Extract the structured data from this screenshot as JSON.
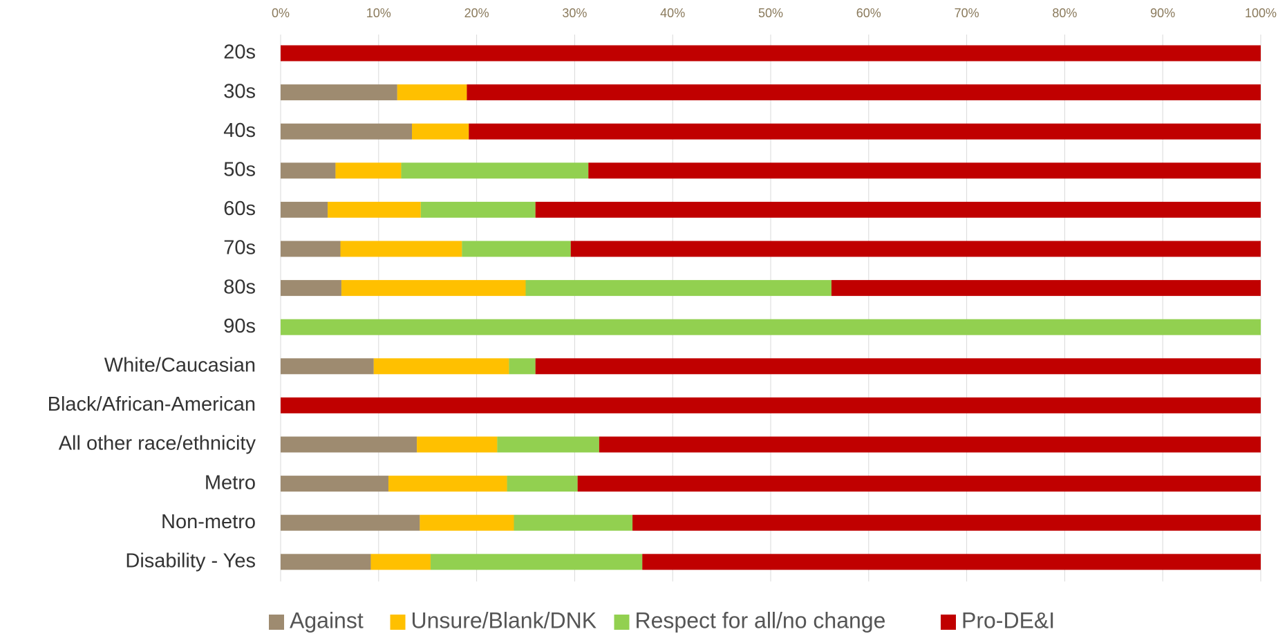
{
  "chart_data": {
    "type": "stacked-barh",
    "categories": [
      "20s",
      "30s",
      "40s",
      "50s",
      "60s",
      "70s",
      "80s",
      "90s",
      "White/Caucasian",
      "Black/African-American",
      "All other race/ethnicity",
      "Metro",
      "Non-metro",
      "Disability - Yes"
    ],
    "series": [
      {
        "name": "Against",
        "color": "#9e8b70",
        "values": [
          0,
          11.9,
          13.4,
          5.6,
          4.8,
          6.1,
          6.2,
          0,
          9.5,
          0,
          13.9,
          11.0,
          14.2,
          9.2
        ]
      },
      {
        "name": "Unsure/Blank/DNK",
        "color": "#ffc000",
        "values": [
          0,
          7.1,
          5.8,
          6.7,
          9.5,
          12.4,
          18.8,
          0,
          13.8,
          0,
          8.2,
          12.1,
          9.6,
          6.1
        ]
      },
      {
        "name": "Respect for all/no change",
        "color": "#92d050",
        "values": [
          0,
          0,
          0,
          19.1,
          11.7,
          11.1,
          31.2,
          100,
          2.7,
          0,
          10.4,
          7.2,
          12.1,
          21.6
        ]
      },
      {
        "name": "Pro-DE&I",
        "color": "#c00000",
        "values": [
          100,
          81.0,
          80.8,
          68.6,
          74.0,
          70.4,
          43.8,
          0,
          74.0,
          100,
          67.5,
          69.7,
          64.1,
          63.1
        ]
      }
    ],
    "xlim": [
      0,
      100
    ],
    "xticks": [
      {
        "value": 0,
        "label": "0%"
      },
      {
        "value": 10,
        "label": "10%"
      },
      {
        "value": 20,
        "label": "20%"
      },
      {
        "value": 30,
        "label": "30%"
      },
      {
        "value": 40,
        "label": "40%"
      },
      {
        "value": 50,
        "label": "50%"
      },
      {
        "value": 60,
        "label": "60%"
      },
      {
        "value": 70,
        "label": "70%"
      },
      {
        "value": 80,
        "label": "80%"
      },
      {
        "value": 90,
        "label": "90%"
      },
      {
        "value": 100,
        "label": "100%"
      }
    ],
    "grid": true,
    "legend": "bottom"
  }
}
